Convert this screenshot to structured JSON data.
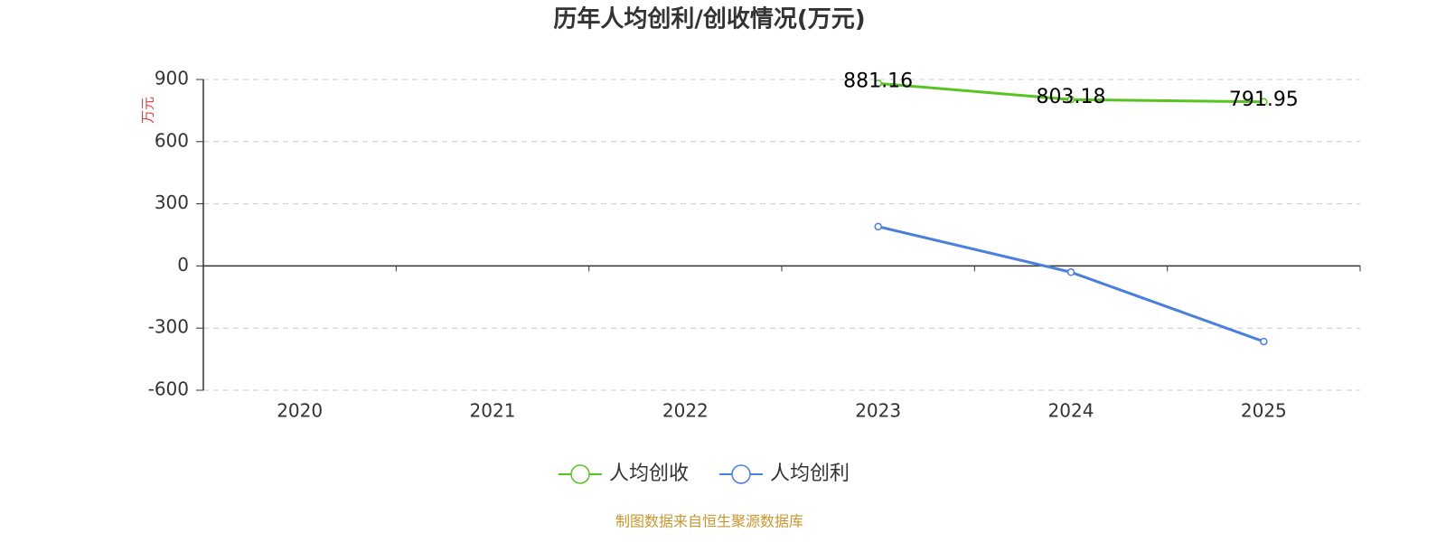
{
  "chart_data": {
    "type": "line",
    "title": "历年人均创利/创收情况(万元)",
    "y_label": "万元",
    "source": "制图数据来自恒生聚源数据库",
    "categories": [
      "2020",
      "2021",
      "2022",
      "2023",
      "2024",
      "2025"
    ],
    "series": [
      {
        "name": "人均创收",
        "color": "#58c322",
        "values": [
          null,
          null,
          null,
          881.16,
          803.18,
          791.95
        ],
        "show_labels": true
      },
      {
        "name": "人均创利",
        "color": "#4a7fdb",
        "values": [
          null,
          null,
          null,
          190,
          -30,
          -365
        ],
        "show_labels": false
      }
    ],
    "ylim": [
      -600,
      900
    ],
    "yticks": [
      -600,
      -300,
      0,
      300,
      600,
      900
    ],
    "grid": true,
    "legend": "bottom"
  }
}
